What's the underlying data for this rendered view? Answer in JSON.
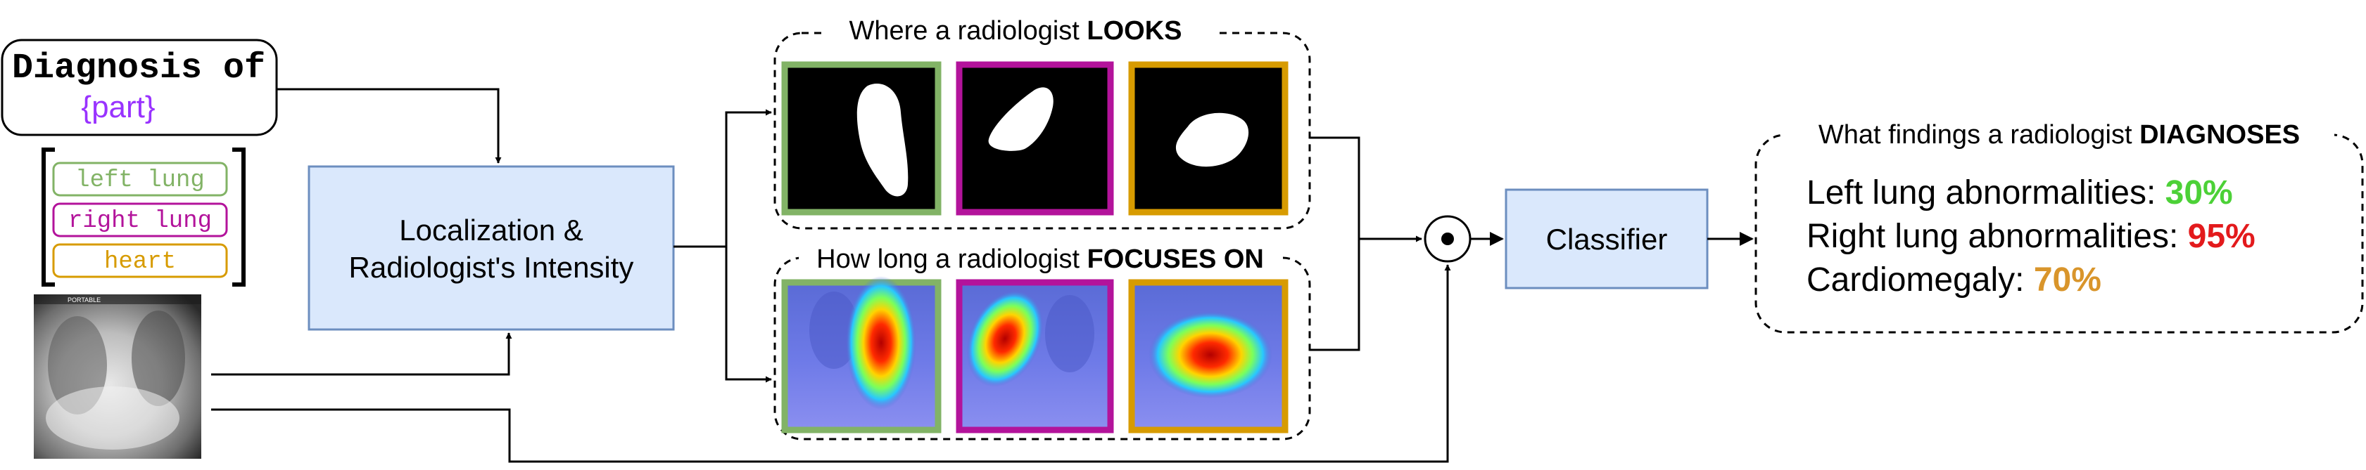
{
  "query": {
    "line1": "Diagnosis of",
    "placeholder": "{part}"
  },
  "parts": [
    {
      "label": "left lung",
      "color": "#82b366"
    },
    {
      "label": "right lung",
      "color": "#b3139b"
    },
    {
      "label": "heart",
      "color": "#d79b00"
    }
  ],
  "localization": {
    "line1": "Localization &",
    "line2": "Radiologist's Intensity"
  },
  "looks": {
    "prefix": "Where a radiologist ",
    "emphasis": "LOOKS"
  },
  "focus": {
    "prefix": "How long a radiologist ",
    "emphasis": "FOCUSES ON"
  },
  "xray_label": "PORTABLE",
  "classifier": {
    "label": "Classifier"
  },
  "findings": {
    "heading_prefix": "What findings a radiologist ",
    "heading_emphasis": "DIAGNOSES",
    "items": [
      {
        "label": "Left lung abnormalities: ",
        "value": "30%",
        "color": "#4cd137"
      },
      {
        "label": "Right lung abnormalities: ",
        "value": "95%",
        "color": "#e31a1c"
      },
      {
        "label": "Cardiomegaly: ",
        "value": "70%",
        "color": "#d9952b"
      }
    ]
  },
  "colors": {
    "box_fill": "#dae8fc",
    "box_stroke": "#6c8ebf",
    "accent_purple": "#9933ff"
  }
}
